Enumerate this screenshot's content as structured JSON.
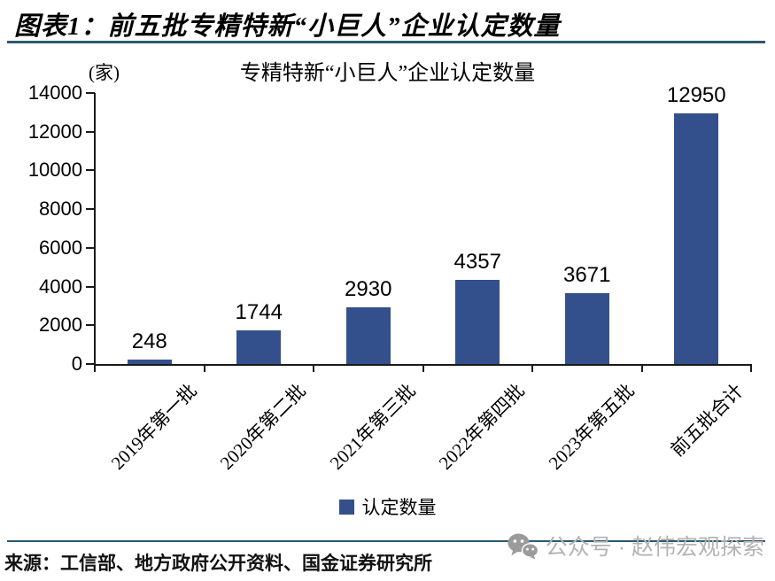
{
  "header": {
    "title": "图表1：前五批专精特新“小巨人”企业认定数量"
  },
  "chart_data": {
    "type": "bar",
    "title": "专精特新“小巨人”企业认定数量",
    "unit_label": "(家)",
    "categories": [
      "2019年第一批",
      "2020年第二批",
      "2021年第三批",
      "2022年第四批",
      "2023年第五批",
      "前五批合计"
    ],
    "values": [
      248,
      1744,
      2930,
      4357,
      3671,
      12950
    ],
    "value_labels": [
      "248",
      "1744",
      "2930",
      "4357",
      "3671",
      "12950"
    ],
    "series_name": "认定数量",
    "xlabel": "",
    "ylabel": "",
    "ylim": [
      0,
      14000
    ],
    "yticks": [
      0,
      2000,
      4000,
      6000,
      8000,
      10000,
      12000,
      14000
    ],
    "grid": false,
    "legend_position": "bottom",
    "bar_color": "#34508c",
    "axis_color": "#1a1a1a"
  },
  "footer": {
    "source": "来源：工信部、地方政府公开资料、国金证券研究所",
    "watermark_text": "公众号 · 赵伟宏观探索"
  },
  "colors": {
    "rule": "#2b5a70",
    "watermark_gray": "#b3b3b3"
  }
}
